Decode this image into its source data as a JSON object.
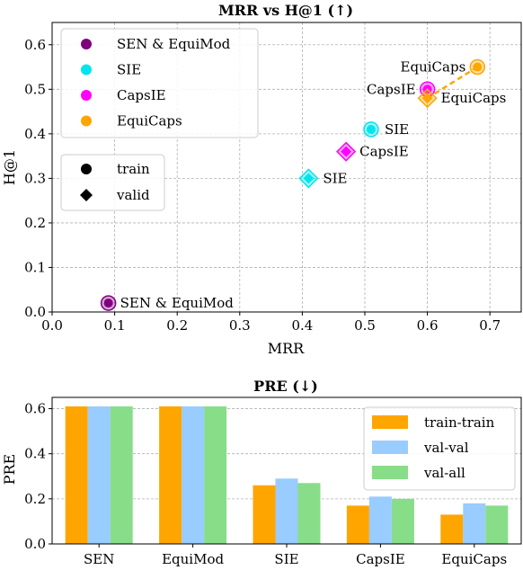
{
  "colors": {
    "sen_equimod": "#800080",
    "sie": "#00e5ee",
    "capsie": "#ff00ff",
    "equicaps": "#ffa500",
    "train_train": "#ffa500",
    "val_val": "#99ccff",
    "val_all": "#88dd88"
  },
  "chart_data": [
    {
      "type": "scatter",
      "title": "MRR vs H@1 (↑)",
      "xlabel": "MRR",
      "ylabel": "H@1",
      "xlim": [
        0.0,
        0.75
      ],
      "ylim": [
        0.0,
        0.65
      ],
      "xticks": [
        "0.0",
        "0.1",
        "0.2",
        "0.3",
        "0.4",
        "0.5",
        "0.6",
        "0.7"
      ],
      "yticks": [
        "0.0",
        "0.1",
        "0.2",
        "0.3",
        "0.4",
        "0.5",
        "0.6"
      ],
      "grid": true,
      "series": [
        {
          "name": "SEN & EquiMod",
          "color": "#800080",
          "points": [
            {
              "split": "train",
              "x": 0.09,
              "y": 0.02,
              "label": "SEN & EquiMod"
            }
          ]
        },
        {
          "name": "SIE",
          "color": "#00e5ee",
          "points": [
            {
              "split": "train",
              "x": 0.51,
              "y": 0.41,
              "label": "SIE"
            },
            {
              "split": "valid",
              "x": 0.41,
              "y": 0.3,
              "label": "SIE"
            }
          ]
        },
        {
          "name": "CapsIE",
          "color": "#ff00ff",
          "points": [
            {
              "split": "train",
              "x": 0.6,
              "y": 0.5,
              "label": "CapsIE"
            },
            {
              "split": "valid",
              "x": 0.47,
              "y": 0.36,
              "label": "CapsIE"
            }
          ]
        },
        {
          "name": "EquiCaps",
          "color": "#ffa500",
          "points": [
            {
              "split": "train",
              "x": 0.68,
              "y": 0.55,
              "label": "EquiCaps"
            },
            {
              "split": "valid",
              "x": 0.6,
              "y": 0.48,
              "label": "EquiCaps"
            }
          ]
        }
      ],
      "legend_models": [
        "SEN & EquiMod",
        "SIE",
        "CapsIE",
        "EquiCaps"
      ],
      "legend_markers": [
        "train",
        "valid"
      ],
      "legend_placement": "upper-left"
    },
    {
      "type": "bar",
      "title": "PRE (↓)",
      "xlabel": "",
      "ylabel": "PRE",
      "ylim": [
        0.0,
        0.65
      ],
      "yticks": [
        "0.0",
        "0.2",
        "0.4",
        "0.6"
      ],
      "categories": [
        "SEN",
        "EquiMod",
        "SIE",
        "CapsIE",
        "EquiCaps"
      ],
      "series": [
        {
          "name": "train-train",
          "color": "#ffa500",
          "values": [
            0.61,
            0.61,
            0.26,
            0.17,
            0.13
          ]
        },
        {
          "name": "val-val",
          "color": "#99ccff",
          "values": [
            0.61,
            0.61,
            0.29,
            0.21,
            0.18
          ]
        },
        {
          "name": "val-all",
          "color": "#88dd88",
          "values": [
            0.61,
            0.61,
            0.27,
            0.2,
            0.17
          ]
        }
      ],
      "grid": true,
      "legend_placement": "upper-right"
    }
  ]
}
